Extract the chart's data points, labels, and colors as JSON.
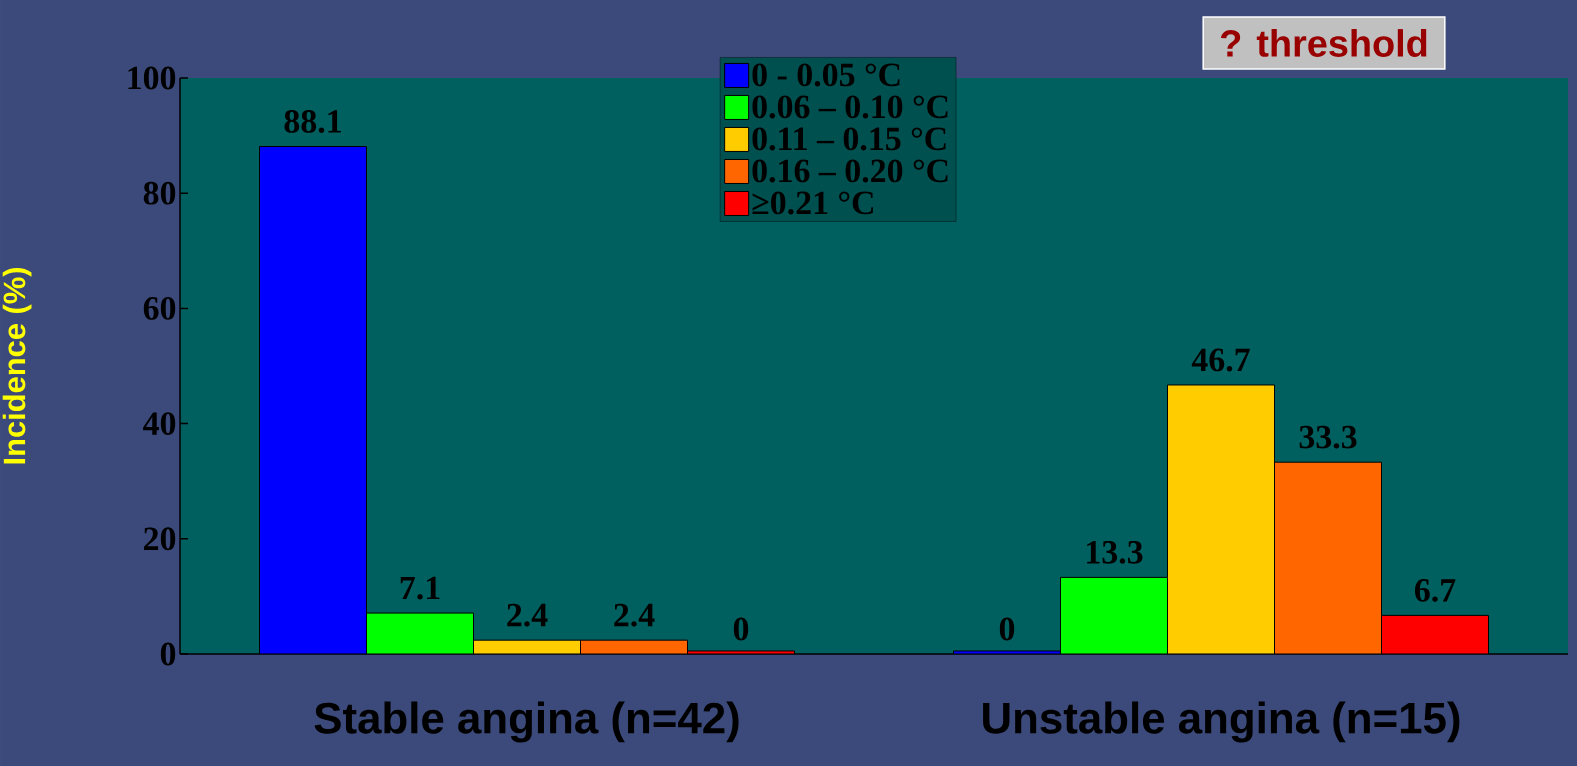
{
  "chart_data": {
    "type": "bar",
    "ylabel": "Incidence (%)",
    "categories": [
      "Stable angina (n=42)",
      "Unstable angina (n=15)"
    ],
    "series": [
      {
        "name": "0 - 0.05 °C",
        "color": "#0000ff",
        "values": [
          88.1,
          0
        ],
        "value_labels": [
          "88.1",
          "0"
        ]
      },
      {
        "name": "0.06 – 0.10 °C",
        "color": "#00ff00",
        "values": [
          7.1,
          13.3
        ],
        "value_labels": [
          "7.1",
          "13.3"
        ]
      },
      {
        "name": "0.11 – 0.15 °C",
        "color": "#ffcc00",
        "values": [
          2.4,
          46.7
        ],
        "value_labels": [
          "2.4",
          "46.7"
        ]
      },
      {
        "name": "0.16 – 0.20 °C",
        "color": "#ff6600",
        "values": [
          2.4,
          33.3
        ],
        "value_labels": [
          "2.4",
          "33.3"
        ]
      },
      {
        "name": "≥0.21 °C",
        "color": "#ff0000",
        "values": [
          0,
          6.7
        ],
        "value_labels": [
          "0",
          "6.7"
        ]
      }
    ],
    "ylim": [
      0,
      100
    ],
    "yticks": [
      0,
      20,
      40,
      60,
      80,
      100
    ],
    "grid": false,
    "legend": "top",
    "annotations": [
      "? threshold"
    ]
  }
}
